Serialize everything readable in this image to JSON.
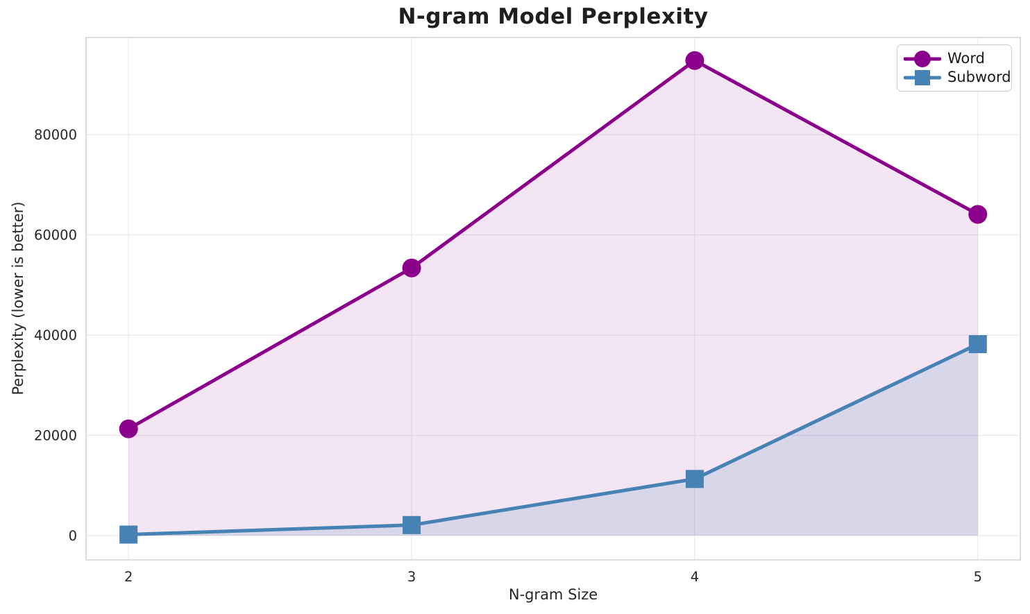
{
  "chart_data": {
    "type": "line",
    "title": "N-gram Model Perplexity",
    "xlabel": "N-gram Size",
    "ylabel": "Perplexity (lower is better)",
    "x": [
      2,
      3,
      4,
      5
    ],
    "xtick_labels": [
      "2",
      "3",
      "4",
      "5"
    ],
    "yticks": [
      0,
      20000,
      40000,
      60000,
      80000
    ],
    "ytick_labels": [
      "0",
      "20000",
      "40000",
      "60000",
      "80000"
    ],
    "xlim": [
      1.85,
      5.15
    ],
    "ylim": [
      -4850,
      99400
    ],
    "grid": true,
    "legend_position": "upper right",
    "series": [
      {
        "name": "Word",
        "values": [
          21300,
          53400,
          94800,
          64100
        ],
        "color": "#8B008B",
        "marker": "circle",
        "area_fill": true,
        "fill_opacity": 0.1
      },
      {
        "name": "Subword",
        "values": [
          200,
          2100,
          11300,
          38200
        ],
        "color": "#4682B4",
        "marker": "square",
        "area_fill": true,
        "fill_opacity": 0.15
      }
    ],
    "styles": {
      "grid_color": "#ECECEC",
      "spine_color": "#D5D5D5",
      "tick_text_color": "#262626",
      "background": "#FFFFFF"
    }
  }
}
